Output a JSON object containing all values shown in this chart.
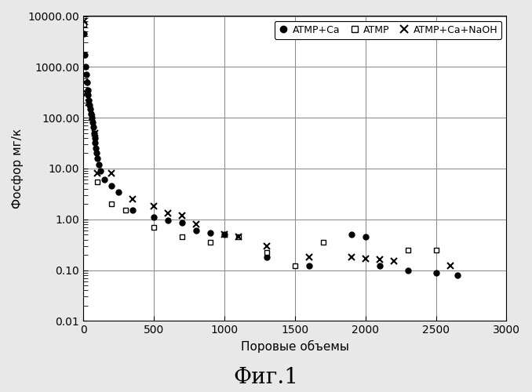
{
  "title_bottom": "Фиг.1",
  "xlabel": "Поровые объемы",
  "ylabel": "Фосфор мг/к",
  "ylim_log": [
    0.01,
    10000.0
  ],
  "xlim": [
    0,
    3000
  ],
  "xticks": [
    0,
    500,
    1000,
    1500,
    2000,
    2500,
    3000
  ],
  "yticks_log": [
    0.01,
    0.1,
    1.0,
    10.0,
    100.0,
    1000.0,
    10000.0
  ],
  "ytick_labels": [
    "0.01",
    "0.10",
    "1.00",
    "10.00",
    "100.00",
    "1000.00",
    "10000.00"
  ],
  "series": {
    "ATMP+Ca": {
      "marker": "o",
      "markersize": 5,
      "color": "black",
      "label": "ATMP+Ca",
      "x": [
        5,
        10,
        15,
        20,
        25,
        30,
        35,
        40,
        45,
        50,
        55,
        60,
        65,
        70,
        75,
        80,
        85,
        90,
        95,
        100,
        110,
        120,
        150,
        200,
        250,
        350,
        500,
        600,
        700,
        800,
        900,
        1000,
        1300,
        1600,
        1900,
        2000,
        2100,
        2300,
        2500,
        2650
      ],
      "y": [
        4500,
        1700,
        1000,
        700,
        500,
        350,
        280,
        220,
        180,
        150,
        120,
        100,
        80,
        65,
        50,
        40,
        32,
        25,
        20,
        16,
        12,
        9,
        6,
        4.5,
        3.5,
        1.5,
        1.1,
        0.95,
        0.85,
        0.6,
        0.55,
        0.5,
        0.18,
        0.12,
        0.5,
        0.45,
        0.12,
        0.1,
        0.09,
        0.08
      ]
    },
    "ATMP": {
      "marker": "s",
      "markersize": 5,
      "color": "black",
      "label": "ATMP",
      "x": [
        5,
        100,
        200,
        300,
        500,
        700,
        900,
        1100,
        1300,
        1500,
        1700,
        2300,
        2500
      ],
      "y": [
        7000,
        5.5,
        2.0,
        1.5,
        0.7,
        0.45,
        0.35,
        0.45,
        0.22,
        0.12,
        0.35,
        0.25,
        0.25
      ]
    },
    "ATMP+Ca+NaOH": {
      "marker": "x",
      "markersize": 6,
      "color": "black",
      "label": "ATMP+Ca+NaOH",
      "x": [
        5,
        10,
        20,
        40,
        60,
        80,
        100,
        200,
        350,
        500,
        600,
        700,
        800,
        1000,
        1100,
        1300,
        1600,
        1900,
        2000,
        2100,
        2200,
        2600
      ],
      "y": [
        8000,
        500,
        300,
        200,
        100,
        50,
        8,
        8,
        2.5,
        1.8,
        1.3,
        1.2,
        0.8,
        0.5,
        0.45,
        0.3,
        0.18,
        0.18,
        0.17,
        0.16,
        0.15,
        0.12
      ]
    }
  },
  "background_color": "#e8e8e8",
  "plot_bg_color": "#ffffff",
  "grid_color": "#888888"
}
